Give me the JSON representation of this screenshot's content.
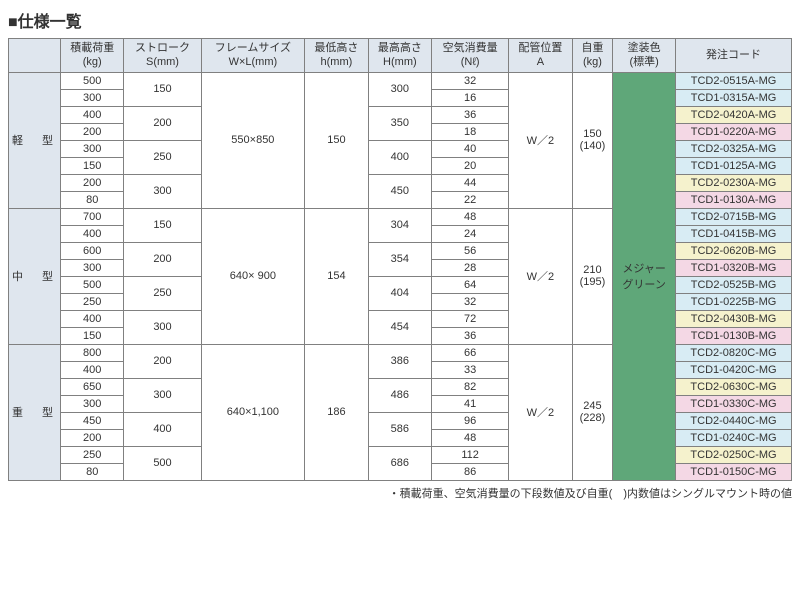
{
  "title": "■仕様一覧",
  "headers": {
    "cat": "",
    "load": "積載荷重\n(kg)",
    "stroke": "ストローク\nS(mm)",
    "frame": "フレームサイズ\nW×L(mm)",
    "minH": "最低高さ\nh(mm)",
    "maxH": "最高高さ\nH(mm)",
    "air": "空気消費量\n(Nℓ)",
    "pipe": "配管位置\nA",
    "weight": "自重\n(kg)",
    "paint": "塗装色\n(標準)",
    "code": "発注コード"
  },
  "groups": [
    {
      "name": "軽　型",
      "rowspan": 8,
      "frame": "550×850",
      "minH": "150",
      "pipe": "W／2",
      "weight": "150\n(140)",
      "rows": [
        {
          "load": "500",
          "stroke": "150",
          "strokeSpan": 2,
          "maxH": "300",
          "maxHSpan": 2,
          "air": "32",
          "code": "TCD2-0515A-MG",
          "cls": "code-b"
        },
        {
          "load": "300",
          "air": "16",
          "code": "TCD1-0315A-MG",
          "cls": "code-b"
        },
        {
          "load": "400",
          "stroke": "200",
          "strokeSpan": 2,
          "maxH": "350",
          "maxHSpan": 2,
          "air": "36",
          "code": "TCD2-0420A-MG",
          "cls": "code-y"
        },
        {
          "load": "200",
          "air": "18",
          "code": "TCD1-0220A-MG",
          "cls": "code-p"
        },
        {
          "load": "300",
          "stroke": "250",
          "strokeSpan": 2,
          "maxH": "400",
          "maxHSpan": 2,
          "air": "40",
          "code": "TCD2-0325A-MG",
          "cls": "code-b"
        },
        {
          "load": "150",
          "air": "20",
          "code": "TCD1-0125A-MG",
          "cls": "code-b"
        },
        {
          "load": "200",
          "stroke": "300",
          "strokeSpan": 2,
          "maxH": "450",
          "maxHSpan": 2,
          "air": "44",
          "code": "TCD2-0230A-MG",
          "cls": "code-y"
        },
        {
          "load": "80",
          "air": "22",
          "code": "TCD1-0130A-MG",
          "cls": "code-p"
        }
      ]
    },
    {
      "name": "中　型",
      "rowspan": 8,
      "frame": "640× 900",
      "minH": "154",
      "pipe": "W／2",
      "weight": "210\n(195)",
      "rows": [
        {
          "load": "700",
          "stroke": "150",
          "strokeSpan": 2,
          "maxH": "304",
          "maxHSpan": 2,
          "air": "48",
          "code": "TCD2-0715B-MG",
          "cls": "code-b"
        },
        {
          "load": "400",
          "air": "24",
          "code": "TCD1-0415B-MG",
          "cls": "code-b"
        },
        {
          "load": "600",
          "stroke": "200",
          "strokeSpan": 2,
          "maxH": "354",
          "maxHSpan": 2,
          "air": "56",
          "code": "TCD2-0620B-MG",
          "cls": "code-y"
        },
        {
          "load": "300",
          "air": "28",
          "code": "TCD1-0320B-MG",
          "cls": "code-p"
        },
        {
          "load": "500",
          "stroke": "250",
          "strokeSpan": 2,
          "maxH": "404",
          "maxHSpan": 2,
          "air": "64",
          "code": "TCD2-0525B-MG",
          "cls": "code-b"
        },
        {
          "load": "250",
          "air": "32",
          "code": "TCD1-0225B-MG",
          "cls": "code-b"
        },
        {
          "load": "400",
          "stroke": "300",
          "strokeSpan": 2,
          "maxH": "454",
          "maxHSpan": 2,
          "air": "72",
          "code": "TCD2-0430B-MG",
          "cls": "code-y"
        },
        {
          "load": "150",
          "air": "36",
          "code": "TCD1-0130B-MG",
          "cls": "code-p"
        }
      ]
    },
    {
      "name": "重　型",
      "rowspan": 8,
      "frame": "640×1,100",
      "minH": "186",
      "pipe": "W／2",
      "weight": "245\n(228)",
      "rows": [
        {
          "load": "800",
          "stroke": "200",
          "strokeSpan": 2,
          "maxH": "386",
          "maxHSpan": 2,
          "air": "66",
          "code": "TCD2-0820C-MG",
          "cls": "code-b"
        },
        {
          "load": "400",
          "air": "33",
          "code": "TCD1-0420C-MG",
          "cls": "code-b"
        },
        {
          "load": "650",
          "stroke": "300",
          "strokeSpan": 2,
          "maxH": "486",
          "maxHSpan": 2,
          "air": "82",
          "code": "TCD2-0630C-MG",
          "cls": "code-y"
        },
        {
          "load": "300",
          "air": "41",
          "code": "TCD1-0330C-MG",
          "cls": "code-p"
        },
        {
          "load": "450",
          "stroke": "400",
          "strokeSpan": 2,
          "maxH": "586",
          "maxHSpan": 2,
          "air": "96",
          "code": "TCD2-0440C-MG",
          "cls": "code-b"
        },
        {
          "load": "200",
          "air": "48",
          "code": "TCD1-0240C-MG",
          "cls": "code-b"
        },
        {
          "load": "250",
          "stroke": "500",
          "strokeSpan": 2,
          "maxH": "686",
          "maxHSpan": 2,
          "air": "112",
          "code": "TCD2-0250C-MG",
          "cls": "code-y"
        },
        {
          "load": "80",
          "air": "86",
          "code": "TCD1-0150C-MG",
          "cls": "code-p"
        }
      ]
    }
  ],
  "paintLabel": "メジャー\nグリーン",
  "footnote": "・積載荷重、空気消費量の下段数値及び自重(　)内数値はシングルマウント時の値"
}
